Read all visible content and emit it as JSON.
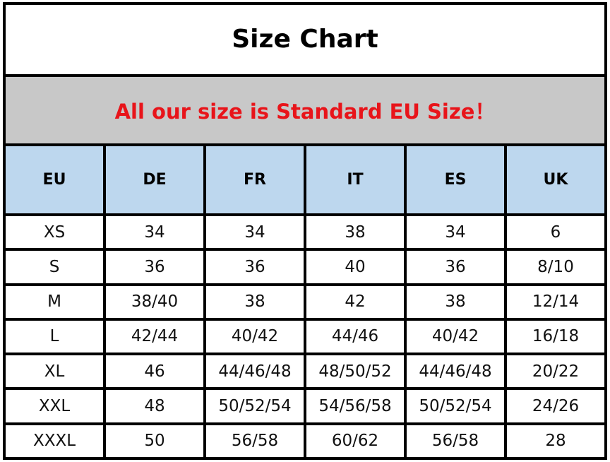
{
  "title": "Size Chart",
  "note": "All our size is Standard EU Size！",
  "colors": {
    "note_text": "#e8141a",
    "note_bg": "#c8c8c8",
    "header_bg": "#bdd7ee"
  },
  "headers": [
    "EU",
    "DE",
    "FR",
    "IT",
    "ES",
    "UK"
  ],
  "rows": [
    [
      "XS",
      "34",
      "34",
      "38",
      "34",
      "6"
    ],
    [
      "S",
      "36",
      "36",
      "40",
      "36",
      "8/10"
    ],
    [
      "M",
      "38/40",
      "38",
      "42",
      "38",
      "12/14"
    ],
    [
      "L",
      "42/44",
      "40/42",
      "44/46",
      "40/42",
      "16/18"
    ],
    [
      "XL",
      "46",
      "44/46/48",
      "48/50/52",
      "44/46/48",
      "20/22"
    ],
    [
      "XXL",
      "48",
      "50/52/54",
      "54/56/58",
      "50/52/54",
      "24/26"
    ],
    [
      "XXXL",
      "50",
      "56/58",
      "60/62",
      "56/58",
      "28"
    ]
  ]
}
